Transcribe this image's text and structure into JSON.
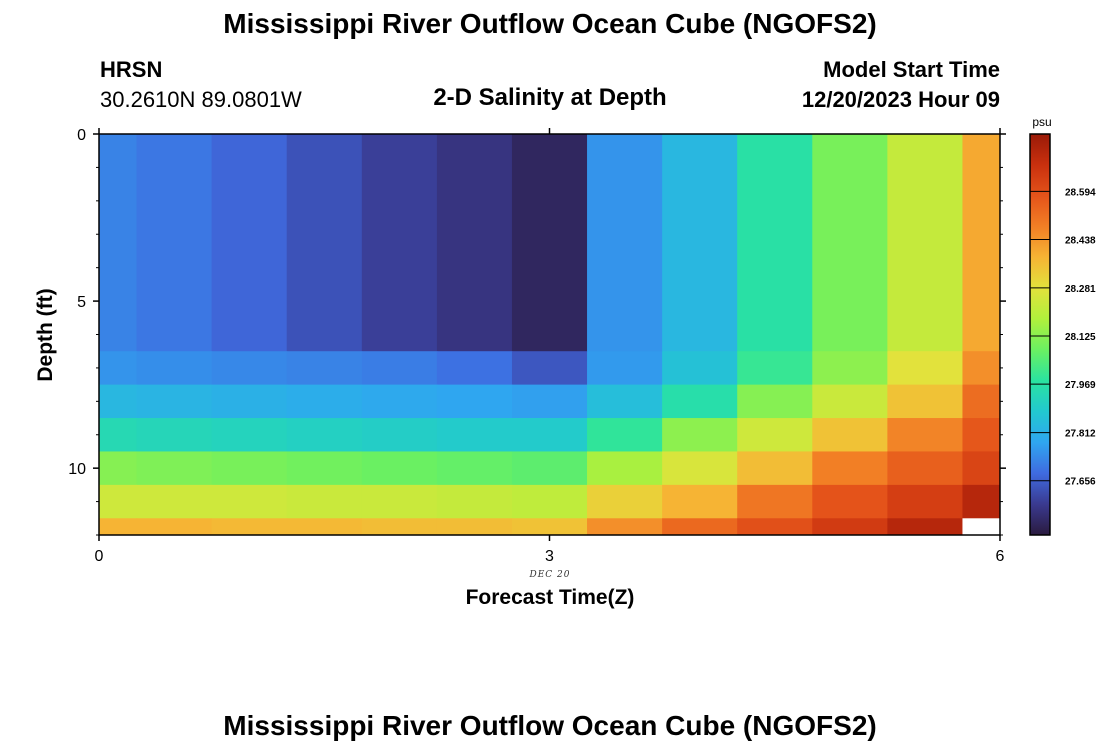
{
  "page": {
    "title_top": "Mississippi River Outflow Ocean Cube (NGOFS2)",
    "title_bottom": "Mississippi River Outflow Ocean Cube (NGOFS2)",
    "station_name": "HRSN",
    "station_coords": "30.2610N  89.0801W",
    "plot_subtitle": "2-D Salinity at Depth",
    "model_start_label": "Model Start Time",
    "model_start_value": "12/20/2023 Hour 09"
  },
  "chart_data": {
    "type": "heatmap",
    "title": "2-D Salinity at Depth",
    "xlabel": "Forecast Time(Z)",
    "ylabel": "Depth (ft)",
    "date_label": "DEC 20",
    "xlim": [
      0,
      6
    ],
    "ylim": [
      0,
      12
    ],
    "x_ticks": [
      0,
      3,
      6
    ],
    "y_ticks": [
      0,
      5,
      10
    ],
    "x_edges": [
      0,
      0.25,
      0.75,
      1.25,
      1.75,
      2.25,
      2.75,
      3.25,
      3.75,
      4.25,
      4.75,
      5.25,
      5.75,
      6
    ],
    "y_edges": [
      0,
      6.5,
      7.5,
      8.5,
      9.5,
      10.5,
      11.5,
      12
    ],
    "values": [
      [
        27.72,
        27.7,
        27.67,
        27.63,
        27.59,
        27.56,
        27.52,
        27.75,
        27.83,
        27.97,
        28.1,
        28.22,
        28.4
      ],
      [
        27.75,
        27.74,
        27.73,
        27.72,
        27.71,
        27.69,
        27.64,
        27.76,
        27.86,
        28.0,
        28.13,
        28.28,
        28.45
      ],
      [
        27.83,
        27.82,
        27.81,
        27.8,
        27.79,
        27.78,
        27.77,
        27.85,
        27.96,
        28.12,
        28.23,
        28.35,
        28.52
      ],
      [
        27.94,
        27.93,
        27.92,
        27.91,
        27.9,
        27.89,
        27.89,
        27.99,
        28.13,
        28.24,
        28.35,
        28.47,
        28.57
      ],
      [
        28.12,
        28.11,
        28.1,
        28.09,
        28.08,
        28.07,
        28.06,
        28.17,
        28.26,
        28.36,
        28.48,
        28.55,
        28.62
      ],
      [
        28.24,
        28.24,
        28.24,
        28.23,
        28.23,
        28.22,
        28.21,
        28.32,
        28.38,
        28.5,
        28.58,
        28.64,
        28.72
      ],
      [
        28.38,
        28.38,
        28.37,
        28.37,
        28.36,
        28.36,
        28.35,
        28.45,
        28.53,
        28.59,
        28.65,
        28.72,
        null
      ]
    ],
    "colorbar": {
      "unit": "psu",
      "range": [
        27.48,
        28.78
      ],
      "ticks": [
        "27.656",
        "27.812",
        "27.969",
        "28.125",
        "28.281",
        "28.438",
        "28.594"
      ],
      "colors": [
        "#2a1a3e",
        "#3a3a90",
        "#3f6be0",
        "#2fa6f0",
        "#22c8d0",
        "#2ae3a0",
        "#6af062",
        "#b0f03c",
        "#e2e23c",
        "#f6b434",
        "#f27f25",
        "#e4531a",
        "#c9300e",
        "#9a1a08"
      ]
    }
  }
}
